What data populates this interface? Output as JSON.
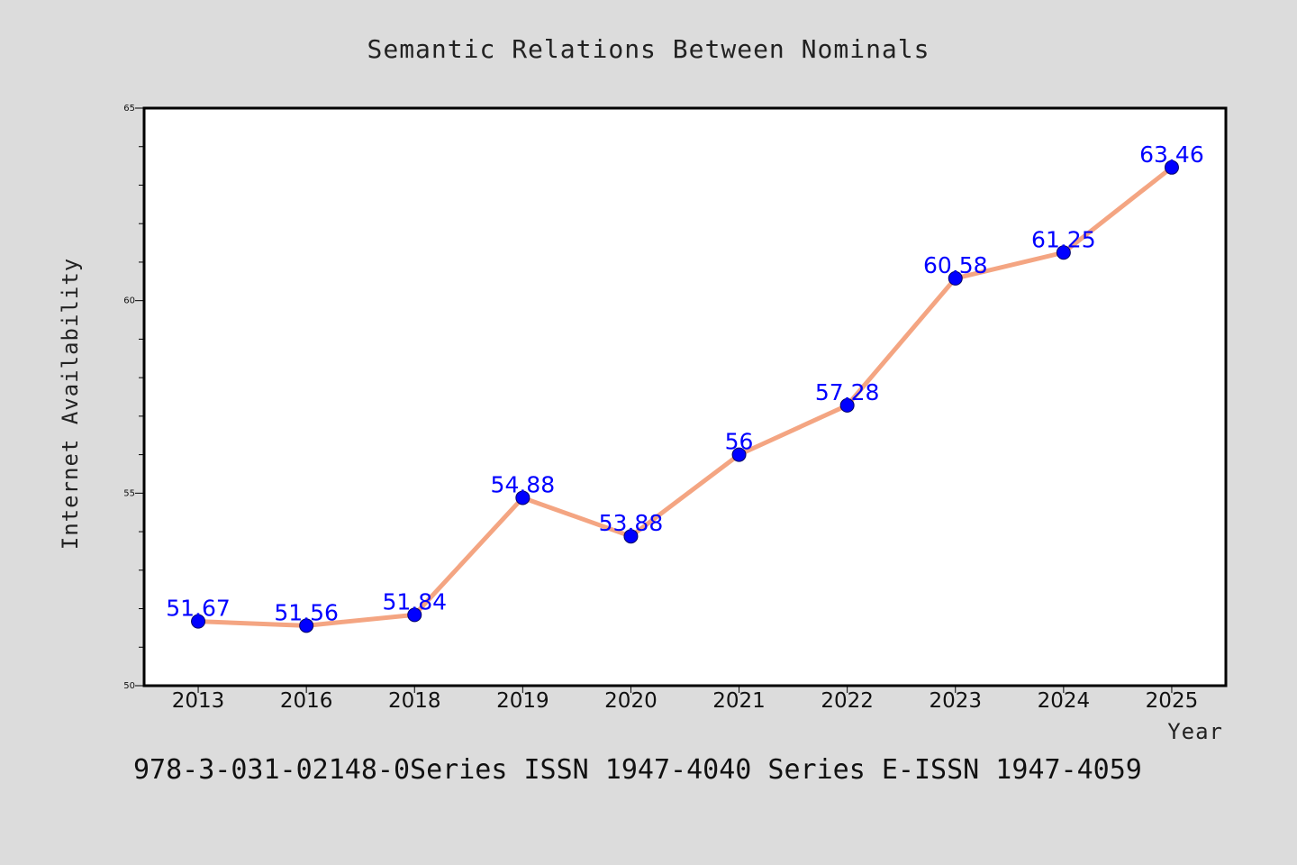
{
  "chart_data": {
    "type": "line",
    "title": "Semantic Relations Between Nominals",
    "xlabel": "Year",
    "ylabel": "Internet Availability",
    "categories": [
      "2013",
      "2016",
      "2018",
      "2019",
      "2020",
      "2021",
      "2022",
      "2023",
      "2024",
      "2025"
    ],
    "values": [
      51.67,
      51.56,
      51.84,
      54.88,
      53.88,
      56,
      57.28,
      60.58,
      61.25,
      63.46
    ],
    "data_labels": [
      "51.67",
      "51.56",
      "51.84",
      "54.88",
      "53.88",
      "56",
      "57.28",
      "60.58",
      "61.25",
      "63.46"
    ],
    "ylim": [
      50,
      65
    ],
    "y_ticks": [
      "50",
      "55",
      "60",
      "65"
    ],
    "y_tick_values": [
      50,
      55,
      60,
      65
    ],
    "y_minor_step": 1,
    "grid": false,
    "legend": "none",
    "line_color": "#f4a582",
    "marker_color": "#0000ff",
    "label_color": "#0000ff",
    "background_color": "#dcdcdc",
    "plot_background": "#ffffff"
  },
  "footer": {
    "text": "978-3-031-02148-0Series ISSN 1947-4040 Series E-ISSN 1947-4059"
  }
}
